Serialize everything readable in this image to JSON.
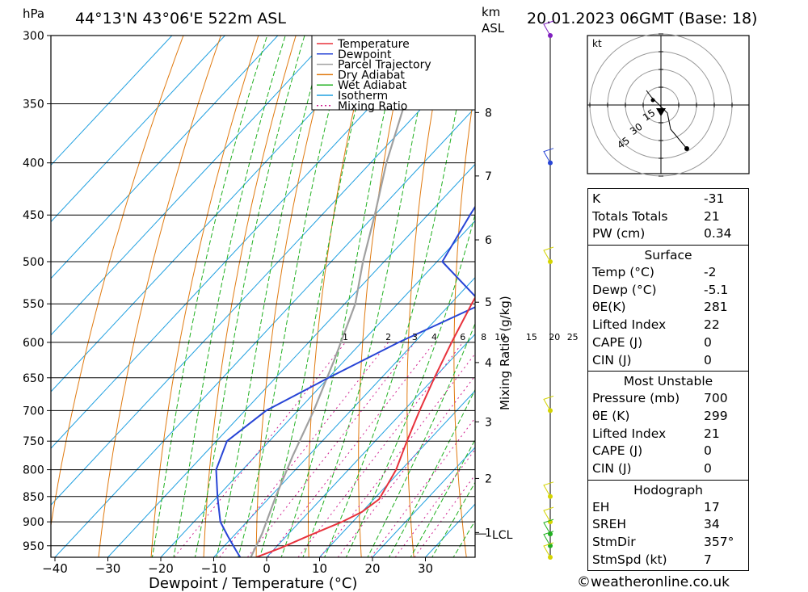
{
  "header": {
    "units_pressure": "hPa",
    "location": "44°13'N 43°06'E 522m ASL",
    "units_height_line1": "km",
    "units_height_line2": "ASL",
    "datetime": "20.01.2023 06GMT (Base: 18)"
  },
  "chart_data": {
    "type": "line",
    "chart_kind": "skew-T log-P sounding",
    "xlabel": "Dewpoint / Temperature (°C)",
    "ylabel": "hPa",
    "x_ticks": [
      -40,
      -30,
      -20,
      -10,
      0,
      10,
      20,
      30
    ],
    "pressure_levels": [
      300,
      350,
      400,
      450,
      500,
      550,
      600,
      650,
      700,
      750,
      800,
      850,
      900,
      950
    ],
    "km_ticks": [
      {
        "label": "8",
        "p": 357
      },
      {
        "label": "7",
        "p": 412
      },
      {
        "label": "6",
        "p": 476
      },
      {
        "label": "5",
        "p": 548
      },
      {
        "label": "4",
        "p": 628
      },
      {
        "label": "3",
        "p": 718
      },
      {
        "label": "2",
        "p": 816
      },
      {
        "label": "1",
        "p": 922
      }
    ],
    "lcl_label": "LCL",
    "lcl_pressure": 925,
    "mixing_ratio_title": "Mixing Ratio (g/kg)",
    "mixing_ratio_labels": [
      "1",
      "2",
      "3",
      "4",
      "6",
      "8",
      "10",
      "15",
      "20",
      "25"
    ],
    "mixing_ratio_values": [
      1,
      2,
      3,
      4,
      6,
      8,
      10,
      15,
      20,
      25
    ],
    "legend_position": "top-center",
    "legend": [
      {
        "name": "Temperature",
        "color": "#e8323c"
      },
      {
        "name": "Dewpoint",
        "color": "#2845d6"
      },
      {
        "name": "Parcel Trajectory",
        "color": "#a0a0a0"
      },
      {
        "name": "Dry Adiabat",
        "color": "#e07a10"
      },
      {
        "name": "Wet Adiabat",
        "color": "#20b020"
      },
      {
        "name": "Isotherm",
        "color": "#20a0e0"
      },
      {
        "name": "Mixing Ratio",
        "color": "#d02090"
      }
    ],
    "temperature": [
      [
        -2,
        975
      ],
      [
        1,
        955
      ],
      [
        4,
        930
      ],
      [
        8,
        900
      ],
      [
        10,
        880
      ],
      [
        11,
        855
      ],
      [
        9,
        800
      ],
      [
        6,
        750
      ],
      [
        3,
        700
      ],
      [
        0,
        650
      ],
      [
        -3,
        600
      ],
      [
        -6,
        550
      ],
      [
        -9,
        500
      ],
      [
        -14,
        450
      ],
      [
        -18,
        400
      ],
      [
        -24,
        350
      ],
      [
        -31,
        300
      ]
    ],
    "dewpoint": [
      [
        -5,
        975
      ],
      [
        -7,
        960
      ],
      [
        -11,
        930
      ],
      [
        -15,
        900
      ],
      [
        -20,
        850
      ],
      [
        -25,
        800
      ],
      [
        -28,
        750
      ],
      [
        -26,
        700
      ],
      [
        -20,
        650
      ],
      [
        -13,
        600
      ],
      [
        -4,
        550
      ],
      [
        -19,
        500
      ],
      [
        -22,
        450
      ],
      [
        -25,
        400
      ],
      [
        -14,
        350
      ],
      [
        -23,
        300
      ]
    ],
    "parcel": [
      [
        -3,
        975
      ],
      [
        -5,
        925
      ],
      [
        -9,
        850
      ],
      [
        -13,
        775
      ],
      [
        -17,
        700
      ],
      [
        -22,
        625
      ],
      [
        -28,
        550
      ],
      [
        -34,
        500
      ],
      [
        -40,
        450
      ],
      [
        -47,
        400
      ],
      [
        -54,
        350
      ],
      [
        -62,
        300
      ]
    ],
    "wind_profile": [
      {
        "p": 300,
        "color": "#8020c0"
      },
      {
        "p": 400,
        "color": "#2845d6"
      },
      {
        "p": 500,
        "color": "#d4d400"
      },
      {
        "p": 700,
        "color": "#d4d400"
      },
      {
        "p": 850,
        "color": "#d4d400"
      },
      {
        "p": 900,
        "color": "#d4d400"
      },
      {
        "p": 925,
        "color": "#20b020"
      },
      {
        "p": 950,
        "color": "#20b020"
      },
      {
        "p": 975,
        "color": "#d4d400"
      }
    ]
  },
  "hodograph": {
    "unit_label": "kt",
    "ring_labels": [
      "15",
      "30",
      "45"
    ],
    "ring_values_kt": [
      15,
      30,
      45
    ]
  },
  "stats": {
    "indices": [
      {
        "label": "K",
        "value": "-31"
      },
      {
        "label": "Totals Totals",
        "value": "21"
      },
      {
        "label": "PW (cm)",
        "value": "0.34"
      }
    ],
    "surface": {
      "title": "Surface",
      "rows": [
        {
          "label": "Temp (°C)",
          "value": "-2"
        },
        {
          "label": "Dewp (°C)",
          "value": "-5.1"
        },
        {
          "label": "θE(K)",
          "value": "281"
        },
        {
          "label": "Lifted Index",
          "value": "22"
        },
        {
          "label": "CAPE (J)",
          "value": "0"
        },
        {
          "label": "CIN (J)",
          "value": "0"
        }
      ]
    },
    "most_unstable": {
      "title": "Most Unstable",
      "rows": [
        {
          "label": "Pressure (mb)",
          "value": "700"
        },
        {
          "label": "θE (K)",
          "value": "299"
        },
        {
          "label": "Lifted Index",
          "value": "21"
        },
        {
          "label": "CAPE (J)",
          "value": "0"
        },
        {
          "label": "CIN (J)",
          "value": "0"
        }
      ]
    },
    "hodograph": {
      "title": "Hodograph",
      "rows": [
        {
          "label": "EH",
          "value": "17"
        },
        {
          "label": "SREH",
          "value": "34"
        },
        {
          "label": "StmDir",
          "value": "357°"
        },
        {
          "label": "StmSpd (kt)",
          "value": "7"
        }
      ]
    }
  },
  "copyright": "©weatheronline.co.uk"
}
